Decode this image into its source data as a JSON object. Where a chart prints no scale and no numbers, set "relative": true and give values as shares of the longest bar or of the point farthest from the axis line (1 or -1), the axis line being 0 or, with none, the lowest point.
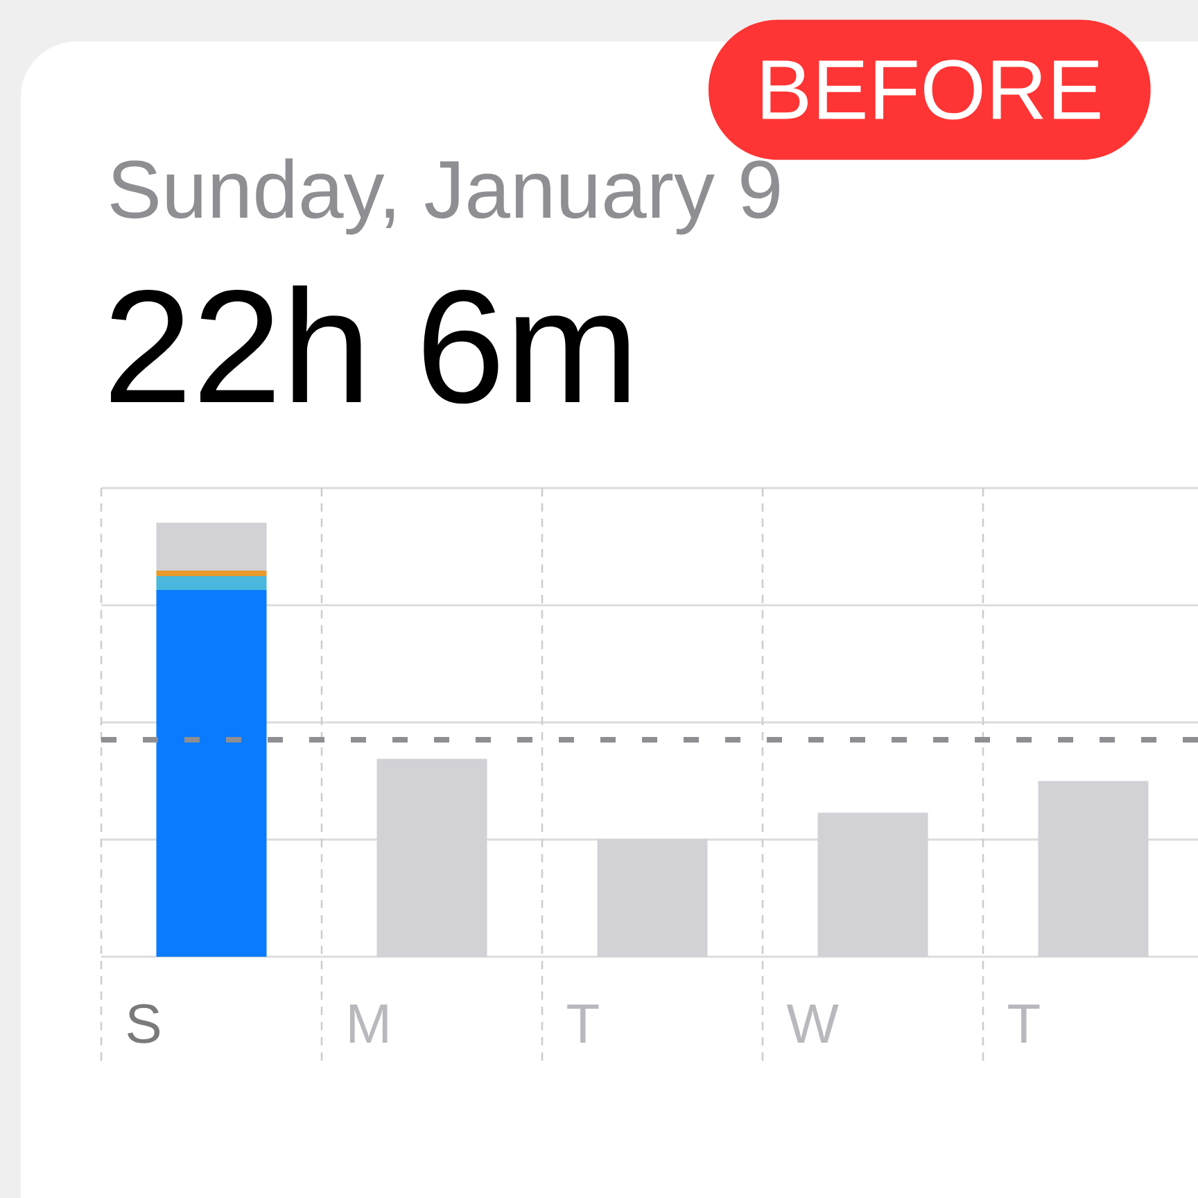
{
  "chart_data": {
    "type": "bar",
    "title": "Sunday, January 9",
    "subtitle": "22h 6m",
    "annotations": [
      "BEFORE"
    ],
    "categories": [
      "S",
      "M",
      "T",
      "W",
      "T"
    ],
    "stacked": true,
    "relative": true,
    "grid": true,
    "series": [
      {
        "color": "#0a7aff",
        "values": [
          0.845,
          null,
          null,
          null,
          null
        ]
      },
      {
        "color": "#4ab8dc",
        "values": [
          0.032,
          null,
          null,
          null,
          null
        ]
      },
      {
        "color": "#e89a2c",
        "values": [
          0.013,
          null,
          null,
          null,
          null
        ]
      },
      {
        "color": "#d1d1d6",
        "values": [
          0.11,
          0.456,
          0.271,
          0.332,
          0.405
        ]
      }
    ],
    "ref_lines": [
      {
        "axis": "y",
        "value": 0.5,
        "color": "#8e8e93",
        "line_style": "dashed"
      }
    ]
  }
}
